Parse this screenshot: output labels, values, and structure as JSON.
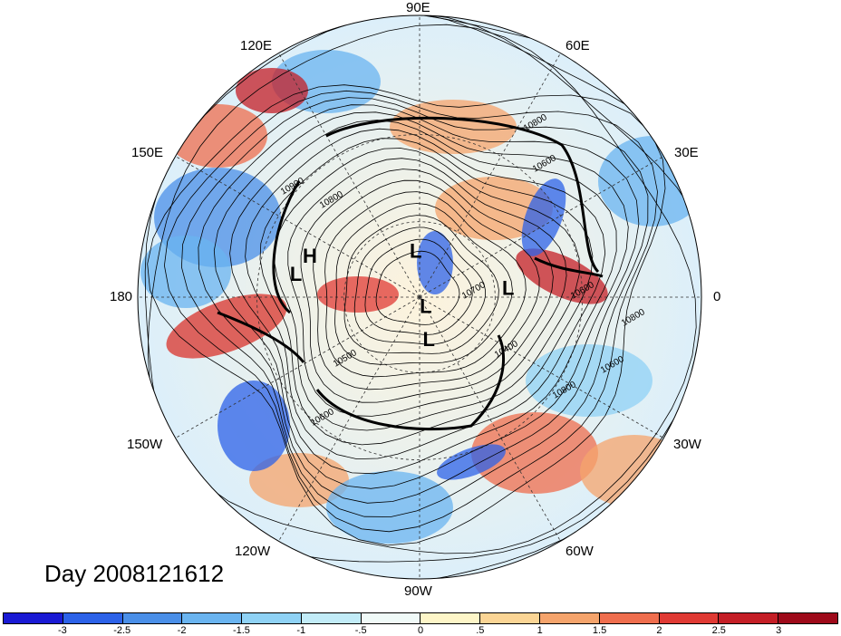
{
  "title": "",
  "day_label": "Day 2008121612",
  "longitude_labels": {
    "north": "90E",
    "ne": "60E",
    "ene": "30E",
    "east": "0",
    "ese": "30W",
    "se": "60W",
    "south": "90W",
    "sw": "120W",
    "wsw": "150W",
    "west": "180",
    "wnw": "150E",
    "nw": "120E"
  },
  "pressure_centers": [
    {
      "label": "H",
      "lon": 160,
      "lat": 45
    },
    {
      "label": "L",
      "lon": 95,
      "lat": 72
    },
    {
      "label": "L",
      "lon": 170,
      "lat": 42
    },
    {
      "label": "L",
      "lon": -60,
      "lat": 85
    },
    {
      "label": "L",
      "lon": -78,
      "lat": 72
    },
    {
      "label": "L",
      "lon": 5,
      "lat": 55
    }
  ],
  "contour_labels": [
    "10800",
    "10600",
    "10900",
    "10800",
    "10600",
    "10700",
    "10600",
    "10400",
    "10500",
    "10800",
    "10800",
    "10600"
  ],
  "colorbar": {
    "colors": [
      "#1a1ad4",
      "#2c62e8",
      "#4a8fe8",
      "#6ab4f0",
      "#8fd2f5",
      "#c2ecf8",
      "#f0faf8",
      "#fef6c8",
      "#fbd595",
      "#f5a46c",
      "#ef6e4e",
      "#e03a34",
      "#c41e26",
      "#9e0a1a"
    ],
    "ticks": [
      "-3",
      "-2.5",
      "-2",
      "-1.5",
      "-1",
      "-.5",
      "0",
      ".5",
      "1",
      "1.5",
      "2",
      "2.5",
      "3"
    ]
  }
}
